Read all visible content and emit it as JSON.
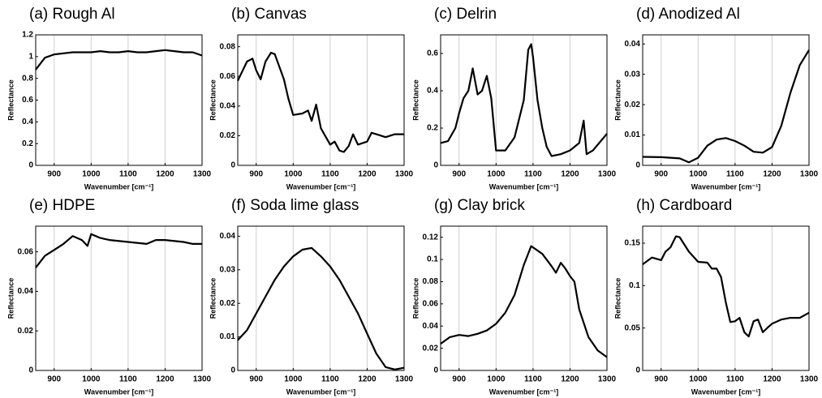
{
  "chart_data": [
    {
      "type": "line",
      "title": "(a)  Rough Al",
      "xlabel": "Wavenumber [cm⁻¹]",
      "ylabel": "Reflectance",
      "color": "#000000",
      "grid": true,
      "x": [
        850,
        875,
        900,
        925,
        950,
        975,
        1000,
        1025,
        1050,
        1075,
        1100,
        1125,
        1150,
        1175,
        1200,
        1225,
        1250,
        1275,
        1300
      ],
      "values": [
        0.88,
        0.99,
        1.02,
        1.03,
        1.04,
        1.04,
        1.04,
        1.05,
        1.04,
        1.04,
        1.05,
        1.04,
        1.04,
        1.05,
        1.06,
        1.05,
        1.04,
        1.04,
        1.01
      ],
      "xlim": [
        850,
        1300
      ],
      "xticks": [
        900,
        1000,
        1100,
        1200,
        1300
      ],
      "ylim": [
        0,
        1.2
      ],
      "yticks": [
        0,
        0.2,
        0.4,
        0.6,
        0.8,
        1,
        1.2
      ]
    },
    {
      "type": "line",
      "title": "(b)  Canvas",
      "xlabel": "Wavenumber [cm⁻¹]",
      "ylabel": "Reflectance",
      "color": "#000000",
      "grid": true,
      "x": [
        850,
        875,
        890,
        900,
        912,
        925,
        940,
        950,
        975,
        987,
        1000,
        1025,
        1040,
        1050,
        1062,
        1075,
        1100,
        1112,
        1125,
        1137,
        1150,
        1162,
        1175,
        1200,
        1212,
        1225,
        1250,
        1275,
        1300
      ],
      "values": [
        0.057,
        0.07,
        0.072,
        0.064,
        0.058,
        0.07,
        0.076,
        0.075,
        0.058,
        0.045,
        0.034,
        0.035,
        0.037,
        0.03,
        0.041,
        0.025,
        0.014,
        0.016,
        0.01,
        0.009,
        0.013,
        0.021,
        0.014,
        0.016,
        0.022,
        0.021,
        0.019,
        0.021,
        0.021
      ],
      "xlim": [
        850,
        1300
      ],
      "xticks": [
        900,
        1000,
        1100,
        1200,
        1300
      ],
      "ylim": [
        0,
        0.088
      ],
      "yticks": [
        0,
        0.02,
        0.04,
        0.06,
        0.08
      ]
    },
    {
      "type": "line",
      "title": "(c)  Delrin",
      "xlabel": "Wavenumber [cm⁻¹]",
      "ylabel": "Reflectance",
      "color": "#000000",
      "grid": true,
      "x": [
        850,
        870,
        890,
        900,
        912,
        925,
        937,
        950,
        962,
        975,
        987,
        1000,
        1025,
        1050,
        1075,
        1087,
        1095,
        1100,
        1112,
        1125,
        1137,
        1150,
        1175,
        1200,
        1225,
        1237,
        1245,
        1262,
        1300
      ],
      "values": [
        0.12,
        0.13,
        0.2,
        0.28,
        0.36,
        0.4,
        0.52,
        0.38,
        0.4,
        0.48,
        0.36,
        0.08,
        0.08,
        0.15,
        0.35,
        0.62,
        0.65,
        0.58,
        0.35,
        0.2,
        0.1,
        0.05,
        0.06,
        0.08,
        0.12,
        0.24,
        0.06,
        0.08,
        0.17
      ],
      "xlim": [
        850,
        1300
      ],
      "xticks": [
        900,
        1000,
        1100,
        1200,
        1300
      ],
      "ylim": [
        0,
        0.7
      ],
      "yticks": [
        0,
        0.2,
        0.4,
        0.6
      ]
    },
    {
      "type": "line",
      "title": "(d)  Anodized Al",
      "xlabel": "Wavenumber [cm⁻¹]",
      "ylabel": "Reflectance",
      "color": "#000000",
      "grid": true,
      "x": [
        850,
        900,
        950,
        975,
        1000,
        1025,
        1050,
        1075,
        1100,
        1125,
        1150,
        1175,
        1200,
        1225,
        1250,
        1275,
        1300
      ],
      "values": [
        0.0028,
        0.0027,
        0.0023,
        0.001,
        0.0025,
        0.0065,
        0.0085,
        0.009,
        0.008,
        0.0065,
        0.0045,
        0.0042,
        0.006,
        0.013,
        0.024,
        0.033,
        0.038
      ],
      "xlim": [
        850,
        1300
      ],
      "xticks": [
        900,
        1000,
        1100,
        1200,
        1300
      ],
      "ylim": [
        0,
        0.043
      ],
      "yticks": [
        0,
        0.01,
        0.02,
        0.03,
        0.04
      ]
    },
    {
      "type": "line",
      "title": "(e)  HDPE",
      "xlabel": "Wavenumber [cm⁻¹]",
      "ylabel": "Reflectance",
      "color": "#000000",
      "grid": true,
      "x": [
        850,
        875,
        900,
        925,
        950,
        975,
        990,
        1000,
        1025,
        1050,
        1100,
        1150,
        1175,
        1200,
        1250,
        1275,
        1300
      ],
      "values": [
        0.052,
        0.058,
        0.061,
        0.064,
        0.068,
        0.066,
        0.063,
        0.069,
        0.067,
        0.066,
        0.065,
        0.064,
        0.066,
        0.066,
        0.065,
        0.064,
        0.064
      ],
      "xlim": [
        850,
        1300
      ],
      "xticks": [
        900,
        1000,
        1100,
        1200,
        1300
      ],
      "ylim": [
        0,
        0.073
      ],
      "yticks": [
        0,
        0.02,
        0.04,
        0.06
      ]
    },
    {
      "type": "line",
      "title": "(f)  Soda lime glass",
      "xlabel": "Wavenumber [cm⁻¹]",
      "ylabel": "Reflectance",
      "color": "#000000",
      "grid": true,
      "x": [
        850,
        875,
        900,
        925,
        950,
        975,
        1000,
        1025,
        1050,
        1075,
        1100,
        1125,
        1150,
        1175,
        1200,
        1225,
        1250,
        1275,
        1300
      ],
      "values": [
        0.009,
        0.012,
        0.017,
        0.022,
        0.027,
        0.031,
        0.034,
        0.036,
        0.0365,
        0.034,
        0.031,
        0.027,
        0.022,
        0.017,
        0.011,
        0.005,
        0.001,
        0.0003,
        0.0008
      ],
      "xlim": [
        850,
        1300
      ],
      "xticks": [
        900,
        1000,
        1100,
        1200,
        1300
      ],
      "ylim": [
        0,
        0.043
      ],
      "yticks": [
        0,
        0.01,
        0.02,
        0.03,
        0.04
      ]
    },
    {
      "type": "line",
      "title": "(g)  Clay brick",
      "xlabel": "Wavenumber [cm⁻¹]",
      "ylabel": "Reflectance",
      "color": "#000000",
      "grid": true,
      "x": [
        850,
        875,
        900,
        925,
        950,
        975,
        1000,
        1025,
        1050,
        1075,
        1095,
        1125,
        1150,
        1162,
        1175,
        1187,
        1200,
        1212,
        1225,
        1250,
        1275,
        1300
      ],
      "values": [
        0.024,
        0.03,
        0.032,
        0.031,
        0.033,
        0.036,
        0.042,
        0.052,
        0.068,
        0.095,
        0.112,
        0.105,
        0.094,
        0.088,
        0.097,
        0.092,
        0.085,
        0.08,
        0.055,
        0.03,
        0.018,
        0.012
      ],
      "xlim": [
        850,
        1300
      ],
      "xticks": [
        900,
        1000,
        1100,
        1200,
        1300
      ],
      "ylim": [
        0,
        0.13
      ],
      "yticks": [
        0,
        0.02,
        0.04,
        0.06,
        0.08,
        0.1,
        0.12
      ]
    },
    {
      "type": "line",
      "title": "(h)  Cardboard",
      "xlabel": "Wavenumber [cm⁻¹]",
      "ylabel": "Reflectance",
      "color": "#000000",
      "grid": true,
      "x": [
        850,
        875,
        900,
        912,
        925,
        940,
        950,
        975,
        1000,
        1025,
        1037,
        1050,
        1062,
        1075,
        1087,
        1100,
        1112,
        1125,
        1137,
        1150,
        1162,
        1175,
        1187,
        1200,
        1225,
        1250,
        1275,
        1300
      ],
      "values": [
        0.125,
        0.133,
        0.13,
        0.14,
        0.145,
        0.158,
        0.157,
        0.14,
        0.128,
        0.127,
        0.12,
        0.12,
        0.11,
        0.08,
        0.057,
        0.058,
        0.062,
        0.045,
        0.04,
        0.058,
        0.06,
        0.045,
        0.05,
        0.055,
        0.06,
        0.062,
        0.062,
        0.068
      ],
      "xlim": [
        850,
        1300
      ],
      "xticks": [
        900,
        1000,
        1100,
        1200,
        1300
      ],
      "ylim": [
        0,
        0.17
      ],
      "yticks": [
        0,
        0.05,
        0.1,
        0.15
      ]
    }
  ]
}
